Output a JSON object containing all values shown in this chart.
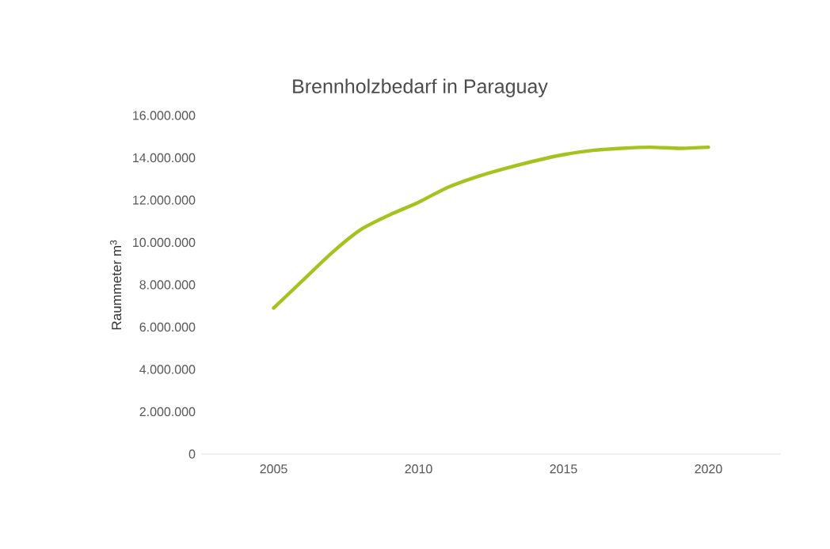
{
  "chart_data": {
    "type": "line",
    "title": "Brennholzbedarf in Paraguay",
    "ylabel": "Raummeter m$^{3}$",
    "x": [
      2005,
      2006,
      2007,
      2008,
      2009,
      2010,
      2011,
      2012,
      2013,
      2014,
      2015,
      2016,
      2017,
      2018,
      2019,
      2020
    ],
    "series": [
      {
        "color": "#a5c31f",
        "values": [
          6900000,
          8200000,
          9500000,
          10600000,
          11300000,
          11900000,
          12600000,
          13100000,
          13500000,
          13850000,
          14150000,
          14350000,
          14450000,
          14500000,
          14450000,
          14500000
        ]
      }
    ],
    "xlim": [
      2002.5,
      2022.5
    ],
    "xticks": [
      2005,
      2010,
      2015,
      2020
    ],
    "ylim": [
      0,
      16000000
    ],
    "yticks": [
      {
        "value": 0,
        "label": "0"
      },
      {
        "value": 2000000,
        "label": "2.000.000"
      },
      {
        "value": 4000000,
        "label": "4.000.000"
      },
      {
        "value": 6000000,
        "label": "6.000.000"
      },
      {
        "value": 8000000,
        "label": "8.000.000"
      },
      {
        "value": 10000000,
        "label": "10.000.000"
      },
      {
        "value": 12000000,
        "label": "12.000.000"
      },
      {
        "value": 14000000,
        "label": "14.000.000"
      },
      {
        "value": 16000000,
        "label": "16.000.000"
      }
    ],
    "grid": false,
    "marker": "none",
    "line_style": "solid"
  }
}
